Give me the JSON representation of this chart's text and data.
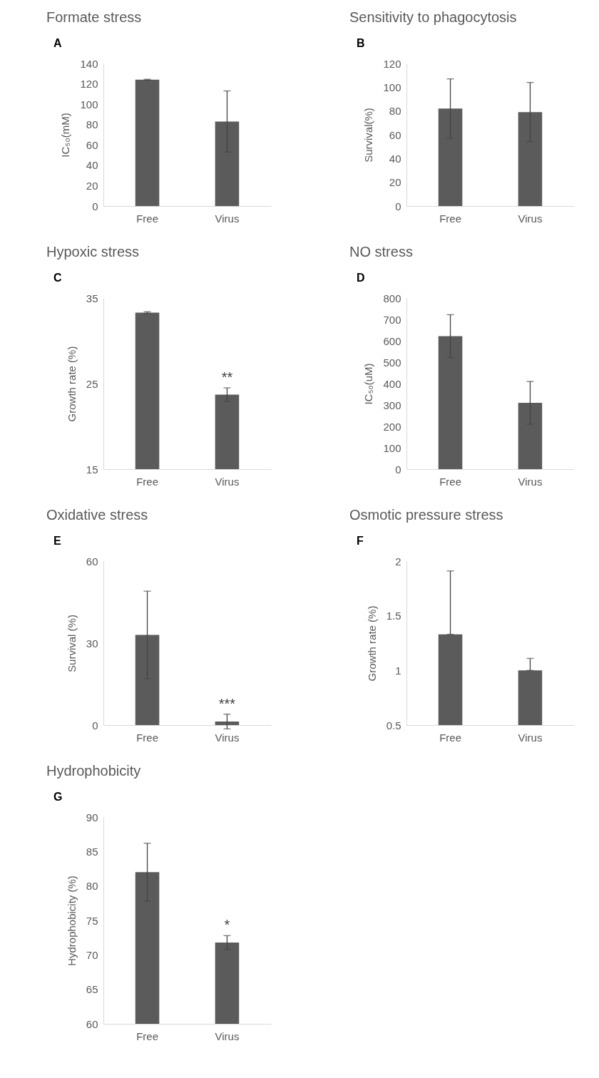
{
  "chart_data": [
    {
      "type": "bar",
      "title": "Formate stress",
      "ylabel": "IC₅₀(mM)",
      "categories": [
        "Free",
        "Virus"
      ],
      "values": [
        124,
        83
      ],
      "errors": [
        0.5,
        30
      ],
      "color": "#5b5b5b",
      "ylim": [
        0,
        140
      ],
      "yticks": [
        0,
        20,
        40,
        60,
        80,
        100,
        120,
        140
      ],
      "annotations": [
        "A"
      ]
    },
    {
      "type": "bar",
      "title": "Sensitivity to phagocytosis",
      "ylabel": "Survival(%)",
      "categories": [
        "Free",
        "Virus"
      ],
      "values": [
        82,
        79
      ],
      "errors": [
        25,
        25
      ],
      "color": "#5b5b5b",
      "ylim": [
        0,
        120
      ],
      "yticks": [
        0,
        20,
        40,
        60,
        80,
        100,
        120
      ],
      "annotations": [
        "B"
      ]
    },
    {
      "type": "bar",
      "title": "Hypoxic stress",
      "ylabel": "Growth rate (%)",
      "categories": [
        "Free",
        "Virus"
      ],
      "values": [
        33.3,
        23.7
      ],
      "errors": [
        0.1,
        0.8
      ],
      "color": "#5b5b5b",
      "ylim": [
        15,
        35
      ],
      "yticks": [
        15,
        25,
        35
      ],
      "annotations": [
        "C",
        "**"
      ]
    },
    {
      "type": "bar",
      "title": "NO stress",
      "ylabel": "IC₅₀(uM)",
      "categories": [
        "Free",
        "Virus"
      ],
      "values": [
        622,
        310
      ],
      "errors": [
        100,
        100
      ],
      "color": "#5b5b5b",
      "ylim": [
        0,
        800
      ],
      "yticks": [
        0,
        100,
        200,
        300,
        400,
        500,
        600,
        700,
        800
      ],
      "annotations": [
        "D"
      ]
    },
    {
      "type": "bar",
      "title": "Oxidative stress",
      "ylabel": "Survival (%)",
      "categories": [
        "Free",
        "Virus"
      ],
      "values": [
        33,
        1.3
      ],
      "errors": [
        16,
        2.7
      ],
      "color": "#5b5b5b",
      "ylim": [
        0,
        60
      ],
      "yticks": [
        0,
        30,
        60
      ],
      "annotations": [
        "E",
        "***"
      ]
    },
    {
      "type": "bar",
      "title": "Osmotic pressure stress",
      "ylabel": "Growth rate (%)",
      "categories": [
        "Free",
        "Virus"
      ],
      "values": [
        1.33,
        1.0
      ],
      "errors": [
        [
          1.33,
          1.91
        ],
        [
          1.0,
          1.11
        ]
      ],
      "color": "#5b5b5b",
      "ylim": [
        0.5,
        2
      ],
      "yticks": [
        0.5,
        1,
        1.5,
        2
      ],
      "annotations": [
        "F"
      ]
    },
    {
      "type": "bar",
      "title": "Hydrophobicity",
      "ylabel": "Hydrophobicity (%)",
      "categories": [
        "Free",
        "Virus"
      ],
      "values": [
        82,
        71.8
      ],
      "errors": [
        4.2,
        1
      ],
      "color": "#5b5b5b",
      "ylim": [
        60,
        90
      ],
      "yticks": [
        60,
        65,
        70,
        75,
        80,
        85,
        90
      ],
      "annotations": [
        "G",
        "*"
      ]
    }
  ]
}
